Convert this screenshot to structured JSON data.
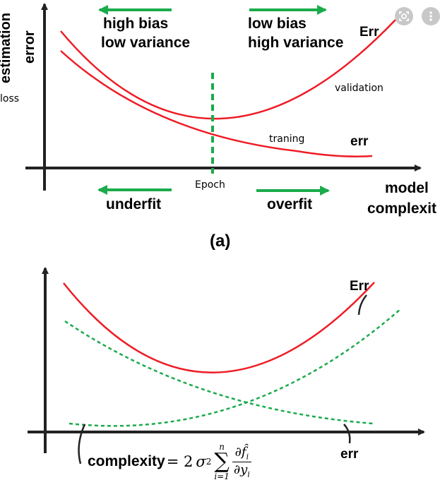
{
  "panel_a": {
    "ylabel_line1": "estimation",
    "ylabel_line2": "error",
    "loss_label": "loss",
    "left_heading_line1": "high bias",
    "left_heading_line2": "low variance",
    "right_heading_line1": "low bias",
    "right_heading_line2": "high variance",
    "err_upper": "Err",
    "validation": "validation",
    "training": "traning",
    "err_lower": "err",
    "epoch": "Epoch",
    "underfit": "underfit",
    "overfit": "overfit",
    "xlabel_line1": "model",
    "xlabel_line2": "complexit",
    "caption": "(a)"
  },
  "panel_b": {
    "err_upper": "Err",
    "err_lower": "err",
    "complexity_word": "complexity",
    "formula_eq": "= 2",
    "formula_sigma": "σ",
    "formula_sup2": "2",
    "sum_symbol": "∑",
    "sum_upper": "n",
    "sum_lower": "i=1",
    "frac_num": "∂f̂",
    "frac_num_sub": "i",
    "frac_den": "∂y",
    "frac_den_sub": "i"
  },
  "colors": {
    "curve_red": "#ee1c25",
    "arrow_green": "#1aab4b",
    "dash_green": "#1aab4b",
    "axis": "#222222"
  },
  "icons": [
    "lens-icon",
    "more-vert-icon"
  ]
}
